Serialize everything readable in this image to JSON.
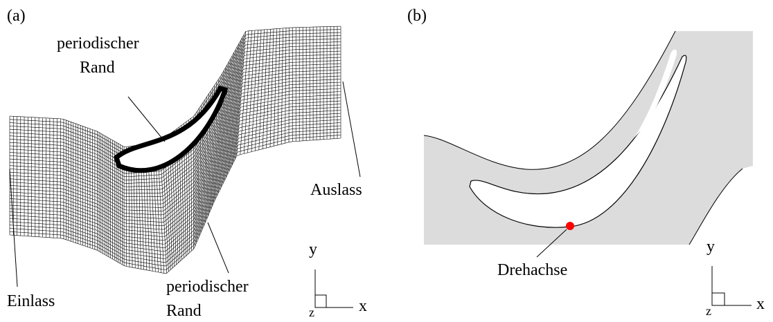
{
  "panels": [
    {
      "label": "(a)",
      "top_boundary": [
        "periodischer",
        "Rand"
      ],
      "outlet": "Auslass",
      "inlet": "Einlass",
      "bottom_boundary": [
        "periodischer",
        "Rand"
      ],
      "axes": {
        "y": "y",
        "x": "x",
        "z": "z"
      }
    },
    {
      "label": "(b)",
      "pivot": "Drehachse",
      "axes": {
        "y": "y",
        "x": "x",
        "z": "z"
      }
    }
  ]
}
